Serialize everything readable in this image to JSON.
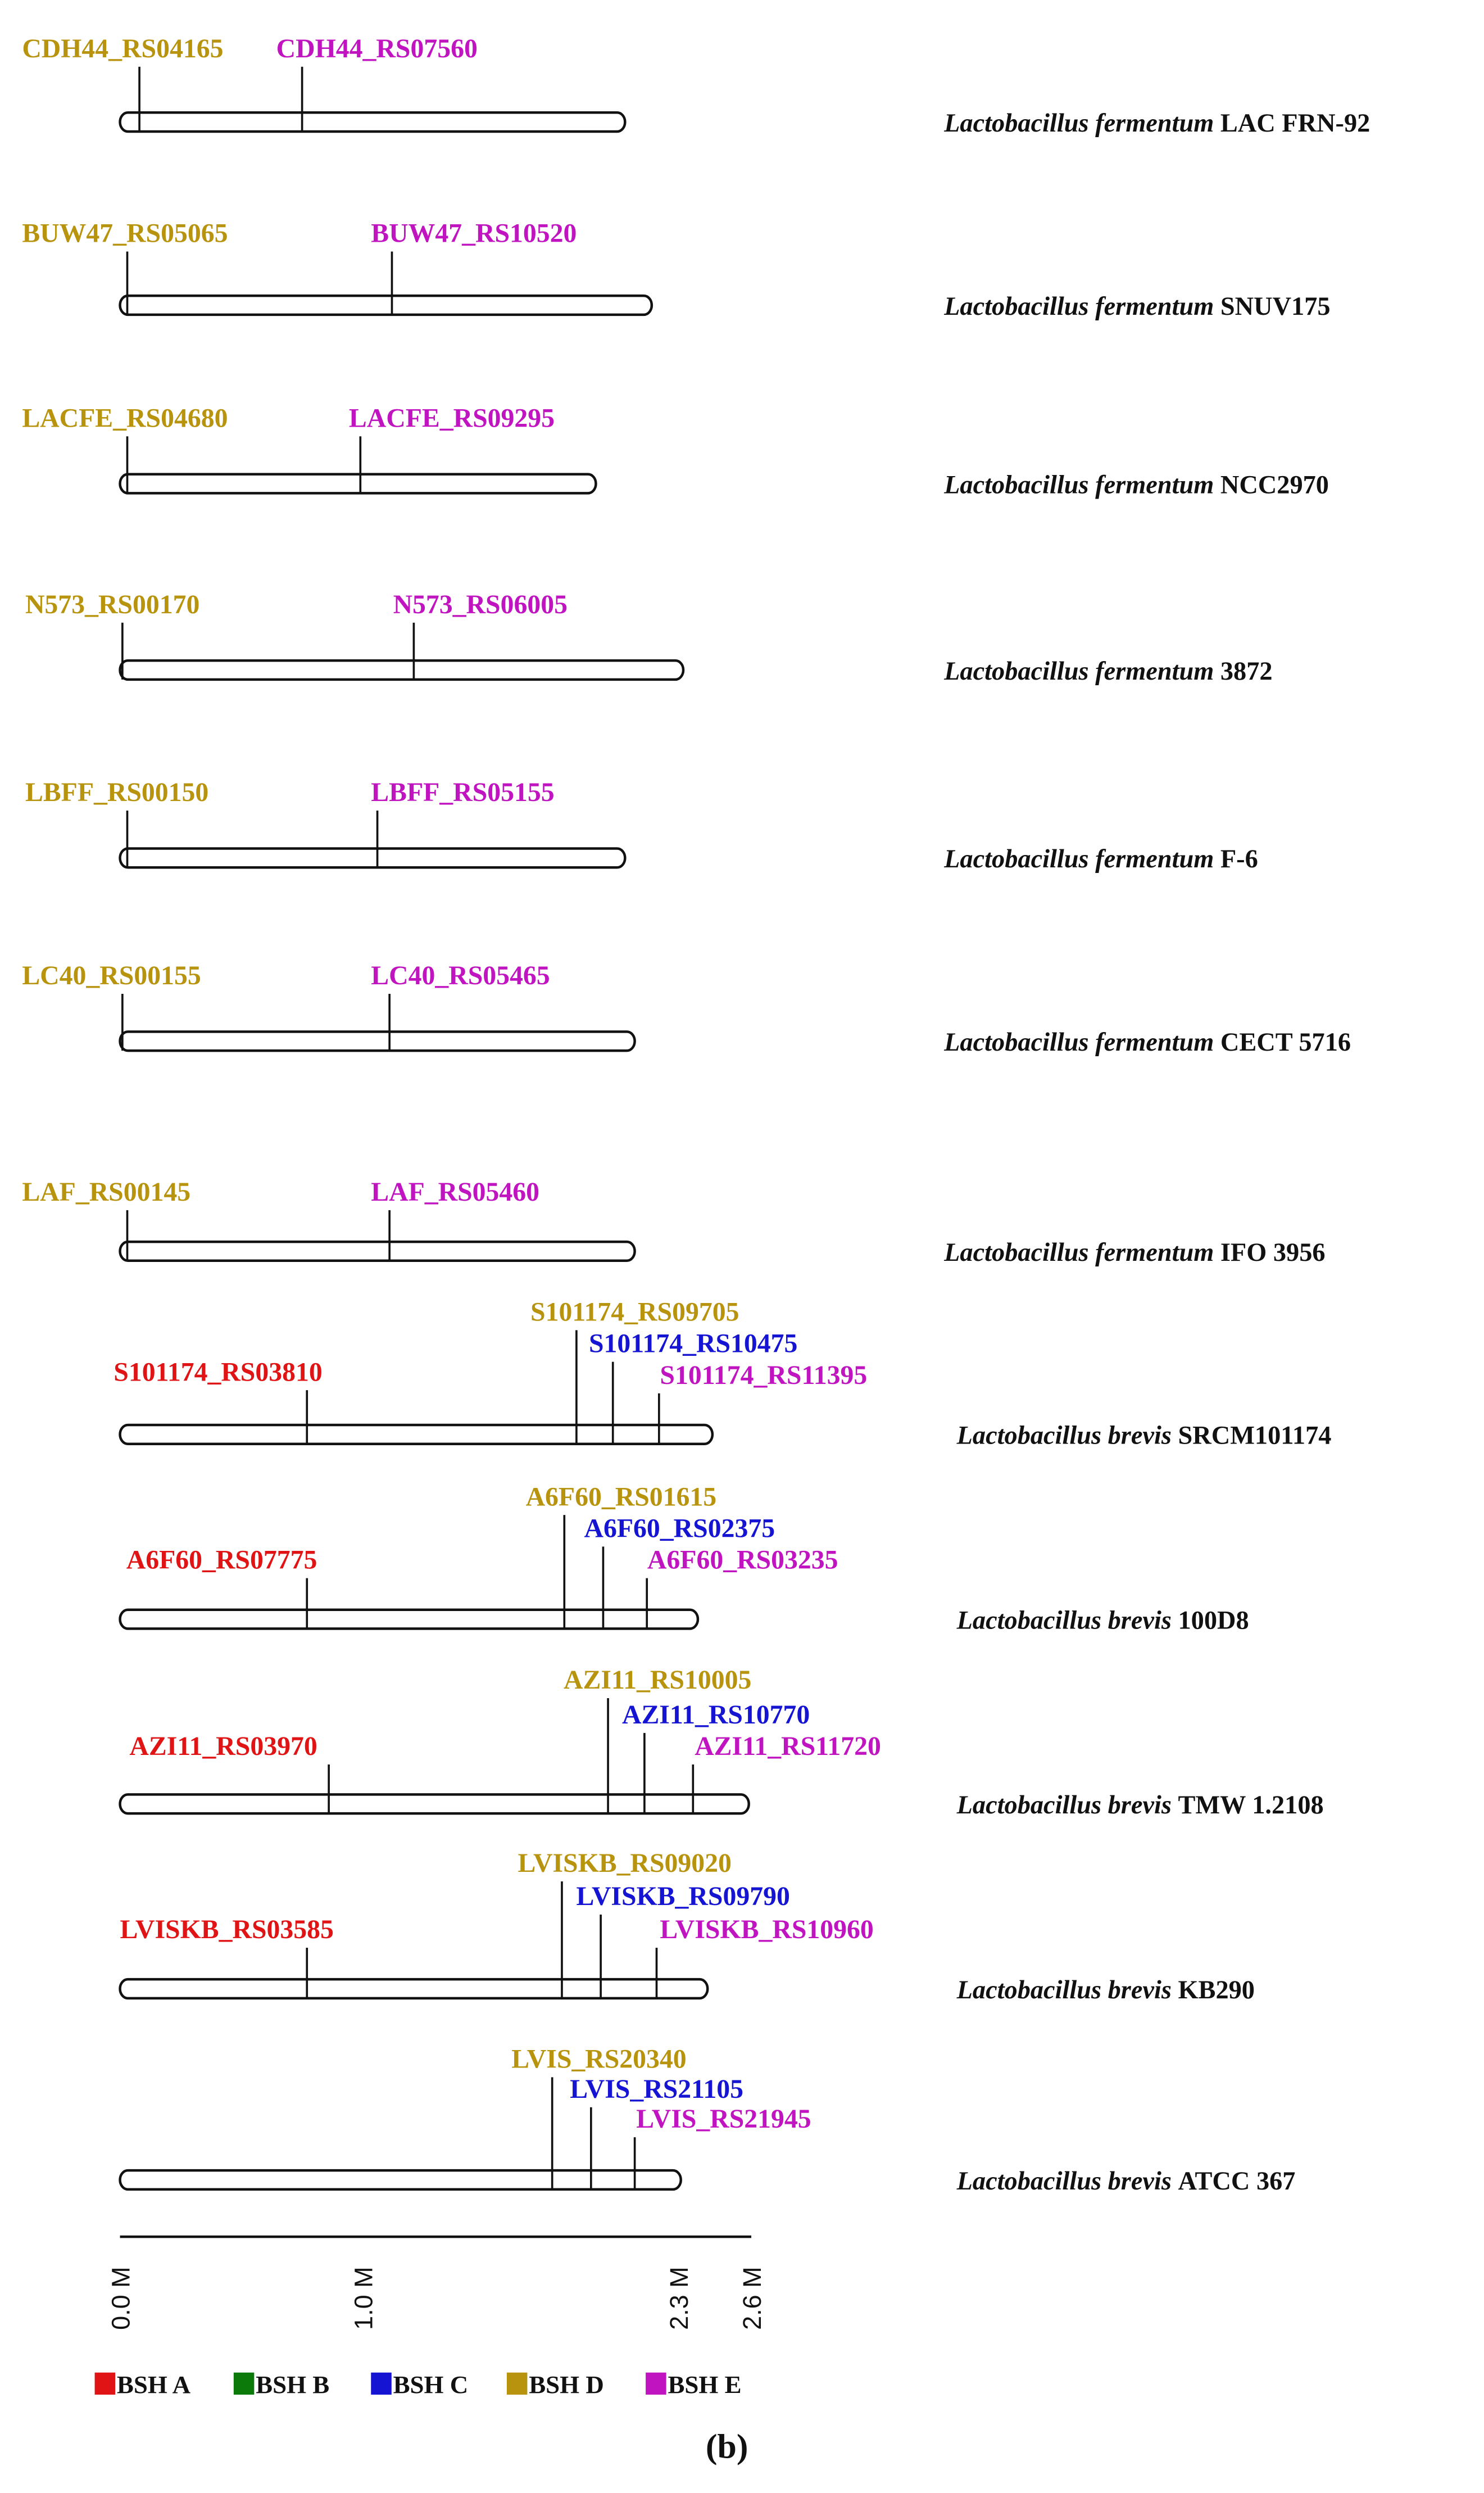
{
  "chart_data": {
    "type": "genome-map",
    "unit": "Mb",
    "axis": {
      "min": 0,
      "max": 2.6,
      "ticks": [
        {
          "value": 0.0,
          "label": "0.0 M"
        },
        {
          "value": 1.0,
          "label": "1.0 M"
        },
        {
          "value": 2.3,
          "label": "2.3 M"
        },
        {
          "value": 2.6,
          "label": "2.6 M"
        }
      ]
    },
    "colors": {
      "A": "#e01414",
      "B": "#0b7a0b",
      "C": "#1414d2",
      "D": "#b8930e",
      "E": "#c014c0"
    },
    "legend": [
      {
        "key": "A",
        "label": "BSH A"
      },
      {
        "key": "B",
        "label": "BSH B"
      },
      {
        "key": "C",
        "label": "BSH C"
      },
      {
        "key": "D",
        "label": "BSH D"
      },
      {
        "key": "E",
        "label": "BSH E"
      }
    ],
    "genomes": [
      {
        "species": "Lactobacillus fermentum",
        "strain": "LAC FRN-92",
        "size": 2.08,
        "genes": [
          {
            "id": "CDH44_RS04165",
            "type": "D",
            "pos": 0.08
          },
          {
            "id": "CDH44_RS07560",
            "type": "E",
            "pos": 0.75
          }
        ]
      },
      {
        "species": "Lactobacillus fermentum",
        "strain": "SNUV175",
        "size": 2.19,
        "genes": [
          {
            "id": "BUW47_RS05065",
            "type": "D",
            "pos": 0.03
          },
          {
            "id": "BUW47_RS10520",
            "type": "E",
            "pos": 1.12
          }
        ]
      },
      {
        "species": "Lactobacillus fermentum",
        "strain": "NCC2970",
        "size": 1.96,
        "genes": [
          {
            "id": "LACFE_RS04680",
            "type": "D",
            "pos": 0.03
          },
          {
            "id": "LACFE_RS09295",
            "type": "E",
            "pos": 0.99
          }
        ]
      },
      {
        "species": "Lactobacillus fermentum",
        "strain": "3872",
        "size": 2.32,
        "genes": [
          {
            "id": "N573_RS00170",
            "type": "D",
            "pos": 0.01
          },
          {
            "id": "N573_RS06005",
            "type": "E",
            "pos": 1.21
          }
        ]
      },
      {
        "species": "Lactobacillus fermentum",
        "strain": "F-6",
        "size": 2.08,
        "genes": [
          {
            "id": "LBFF_RS00150",
            "type": "D",
            "pos": 0.03
          },
          {
            "id": "LBFF_RS05155",
            "type": "E",
            "pos": 1.06
          }
        ]
      },
      {
        "species": "Lactobacillus fermentum",
        "strain": "CECT 5716",
        "size": 2.12,
        "genes": [
          {
            "id": "LC40_RS00155",
            "type": "D",
            "pos": 0.01
          },
          {
            "id": "LC40_RS05465",
            "type": "E",
            "pos": 1.11
          }
        ]
      },
      {
        "species": "Lactobacillus fermentum",
        "strain": "IFO 3956",
        "size": 2.12,
        "genes": [
          {
            "id": "LAF_RS00145",
            "type": "D",
            "pos": 0.03
          },
          {
            "id": "LAF_RS05460",
            "type": "E",
            "pos": 1.11
          }
        ]
      },
      {
        "species": "Lactobacillus brevis",
        "strain": "SRCM101174",
        "size": 2.44,
        "genes": [
          {
            "id": "S101174_RS03810",
            "type": "A",
            "pos": 0.77
          },
          {
            "id": "S101174_RS09705",
            "type": "D",
            "pos": 1.88
          },
          {
            "id": "S101174_RS10475",
            "type": "C",
            "pos": 2.03
          },
          {
            "id": "S101174_RS11395",
            "type": "E",
            "pos": 2.22
          }
        ]
      },
      {
        "species": "Lactobacillus brevis",
        "strain": "100D8",
        "size": 2.38,
        "genes": [
          {
            "id": "A6F60_RS07775",
            "type": "A",
            "pos": 0.77
          },
          {
            "id": "A6F60_RS01615",
            "type": "D",
            "pos": 1.83
          },
          {
            "id": "A6F60_RS02375",
            "type": "C",
            "pos": 1.99
          },
          {
            "id": "A6F60_RS03235",
            "type": "E",
            "pos": 2.17
          }
        ]
      },
      {
        "species": "Lactobacillus brevis",
        "strain": "TMW 1.2108",
        "size": 2.59,
        "genes": [
          {
            "id": "AZI11_RS03970",
            "type": "A",
            "pos": 0.86
          },
          {
            "id": "AZI11_RS10005",
            "type": "D",
            "pos": 2.01
          },
          {
            "id": "AZI11_RS10770",
            "type": "C",
            "pos": 2.16
          },
          {
            "id": "AZI11_RS11720",
            "type": "E",
            "pos": 2.36
          }
        ]
      },
      {
        "species": "Lactobacillus brevis",
        "strain": "KB290",
        "size": 2.42,
        "genes": [
          {
            "id": "LVISKB_RS03585",
            "type": "A",
            "pos": 0.77
          },
          {
            "id": "LVISKB_RS09020",
            "type": "D",
            "pos": 1.82
          },
          {
            "id": "LVISKB_RS09790",
            "type": "C",
            "pos": 1.98
          },
          {
            "id": "LVISKB_RS10960",
            "type": "E",
            "pos": 2.21
          }
        ]
      },
      {
        "species": "Lactobacillus brevis",
        "strain": "ATCC 367",
        "size": 2.31,
        "genes": [
          {
            "id": "LVIS_RS20340",
            "type": "D",
            "pos": 1.78
          },
          {
            "id": "LVIS_RS21105",
            "type": "C",
            "pos": 1.94
          },
          {
            "id": "LVIS_RS21945",
            "type": "E",
            "pos": 2.12
          }
        ]
      }
    ]
  },
  "panel_label": "(b)"
}
